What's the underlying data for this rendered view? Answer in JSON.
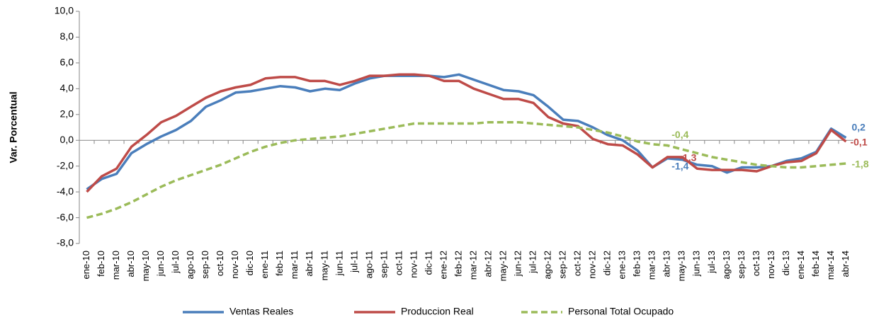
{
  "chart_data": {
    "type": "line",
    "y_label": "Var. Porcentual",
    "categories": [
      "ene-10",
      "feb-10",
      "mar-10",
      "abr-10",
      "may-10",
      "jun-10",
      "jul-10",
      "ago-10",
      "sep-10",
      "oct-10",
      "nov-10",
      "dic-10",
      "ene-11",
      "feb-11",
      "mar-11",
      "abr-11",
      "may-11",
      "jun-11",
      "jul-11",
      "ago-11",
      "sep-11",
      "oct-11",
      "nov-11",
      "dic-11",
      "ene-12",
      "feb-12",
      "mar-12",
      "abr-12",
      "may-12",
      "jun-12",
      "jul-12",
      "ago-12",
      "sep-12",
      "oct-12",
      "nov-12",
      "dic-12",
      "ene-13",
      "feb-13",
      "mar-13",
      "abr-13",
      "may-13",
      "jun-13",
      "jul-13",
      "ago-13",
      "sep-13",
      "oct-13",
      "nov-13",
      "dic-13",
      "ene-14",
      "feb-14",
      "mar-14",
      "abr-14"
    ],
    "series": [
      {
        "name": "Ventas Reales",
        "color": "#4a7ebb",
        "line_style": "solid",
        "values": [
          -3.8,
          -3.0,
          -2.6,
          -1.0,
          -0.3,
          0.3,
          0.8,
          1.5,
          2.6,
          3.1,
          3.7,
          3.8,
          4.0,
          4.2,
          4.1,
          3.8,
          4.0,
          3.9,
          4.4,
          4.8,
          5.0,
          5.0,
          5.0,
          5.0,
          4.9,
          5.1,
          4.7,
          4.3,
          3.9,
          3.8,
          3.5,
          2.6,
          1.6,
          1.5,
          1.0,
          0.4,
          0.0,
          -0.8,
          -2.1,
          -1.4,
          -1.5,
          -1.9,
          -2.0,
          -2.5,
          -2.1,
          -2.1,
          -2.0,
          -1.6,
          -1.4,
          -0.9,
          0.9,
          0.2
        ],
        "value_labels": [
          null,
          null,
          null,
          null,
          null,
          null,
          null,
          null,
          null,
          null,
          null,
          null,
          null,
          null,
          null,
          null,
          null,
          null,
          null,
          null,
          null,
          null,
          null,
          null,
          null,
          null,
          null,
          null,
          null,
          null,
          null,
          null,
          null,
          null,
          null,
          null,
          null,
          null,
          null,
          "-1,4",
          null,
          null,
          null,
          null,
          null,
          null,
          null,
          null,
          null,
          null,
          null,
          "0,2"
        ]
      },
      {
        "name": "Produccion Real",
        "color": "#be4b48",
        "line_style": "solid",
        "values": [
          -4.0,
          -2.8,
          -2.2,
          -0.5,
          0.4,
          1.4,
          1.9,
          2.6,
          3.3,
          3.8,
          4.1,
          4.3,
          4.8,
          4.9,
          4.9,
          4.6,
          4.6,
          4.3,
          4.6,
          5.0,
          5.0,
          5.1,
          5.1,
          5.0,
          4.6,
          4.6,
          4.0,
          3.6,
          3.2,
          3.2,
          2.9,
          1.8,
          1.3,
          1.1,
          0.1,
          -0.3,
          -0.4,
          -1.1,
          -2.1,
          -1.3,
          -1.3,
          -2.2,
          -2.3,
          -2.3,
          -2.3,
          -2.4,
          -2.0,
          -1.7,
          -1.6,
          -1.0,
          0.8,
          -0.1
        ],
        "value_labels": [
          null,
          null,
          null,
          null,
          null,
          null,
          null,
          null,
          null,
          null,
          null,
          null,
          null,
          null,
          null,
          null,
          null,
          null,
          null,
          null,
          null,
          null,
          null,
          null,
          null,
          null,
          null,
          null,
          null,
          null,
          null,
          null,
          null,
          null,
          null,
          null,
          null,
          null,
          null,
          null,
          "-1,3",
          null,
          null,
          null,
          null,
          null,
          null,
          null,
          null,
          null,
          null,
          "-0,1"
        ]
      },
      {
        "name": "Personal Total Ocupado",
        "color": "#9bbb59",
        "line_style": "dashed",
        "values": [
          -6.0,
          -5.7,
          -5.3,
          -4.8,
          -4.2,
          -3.6,
          -3.1,
          -2.7,
          -2.3,
          -1.9,
          -1.4,
          -0.9,
          -0.5,
          -0.2,
          0.0,
          0.1,
          0.2,
          0.3,
          0.5,
          0.7,
          0.9,
          1.1,
          1.3,
          1.3,
          1.3,
          1.3,
          1.3,
          1.4,
          1.4,
          1.4,
          1.3,
          1.2,
          1.1,
          1.0,
          0.8,
          0.6,
          0.3,
          -0.1,
          -0.3,
          -0.4,
          -0.7,
          -1.0,
          -1.3,
          -1.5,
          -1.7,
          -1.9,
          -2.0,
          -2.1,
          -2.1,
          -2.0,
          -1.9,
          -1.8
        ],
        "value_labels": [
          null,
          null,
          null,
          null,
          null,
          null,
          null,
          null,
          null,
          null,
          null,
          null,
          null,
          null,
          null,
          null,
          null,
          null,
          null,
          null,
          null,
          null,
          null,
          null,
          null,
          null,
          null,
          null,
          null,
          null,
          null,
          null,
          null,
          null,
          null,
          null,
          null,
          null,
          null,
          "-0,4",
          null,
          null,
          null,
          null,
          null,
          null,
          null,
          null,
          null,
          null,
          null,
          "-1,8"
        ]
      }
    ],
    "ylim": [
      -8,
      10
    ],
    "yticks": [
      {
        "value": -8,
        "label": "-8,0"
      },
      {
        "value": -6,
        "label": "-6,0"
      },
      {
        "value": -4,
        "label": "-4,0"
      },
      {
        "value": -2,
        "label": "-2,0"
      },
      {
        "value": 0,
        "label": "0,0"
      },
      {
        "value": 2,
        "label": "2,0"
      },
      {
        "value": 4,
        "label": "4,0"
      },
      {
        "value": 6,
        "label": "6,0"
      },
      {
        "value": 8,
        "label": "8,0"
      },
      {
        "value": 10,
        "label": "10,0"
      }
    ],
    "legend": "bottom"
  }
}
